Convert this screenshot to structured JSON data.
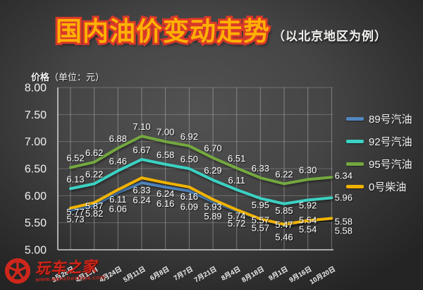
{
  "chart_data": {
    "type": "line",
    "title": "国内油价变动走势",
    "subtitle": "（以北京地区为例）",
    "ylabel_main": "价格",
    "ylabel_unit": "（单位：元）",
    "ylim": [
      5.0,
      8.0
    ],
    "y_ticks": [
      "8.00",
      "7.50",
      "7.00",
      "6.50",
      "6.00",
      "5.50",
      "5.00"
    ],
    "categories": [
      "3月26日",
      "4月10日",
      "4月24日",
      "5月11日",
      "6月8日",
      "7月7日",
      "7月21日",
      "8月4日",
      "8月18日",
      "9月1日",
      "9月16日",
      "10月20日"
    ],
    "series": [
      {
        "name": "89号汽油",
        "color": "#5188c2",
        "values": [
          5.73,
          5.82,
          6.06,
          6.24,
          6.16,
          6.09,
          5.89,
          5.72,
          5.57,
          5.46,
          5.54,
          5.58
        ]
      },
      {
        "name": "92号汽油",
        "color": "#3bd2c3",
        "values": [
          6.13,
          6.22,
          6.46,
          6.67,
          6.58,
          6.5,
          6.29,
          6.11,
          5.95,
          5.85,
          5.92,
          5.96
        ]
      },
      {
        "name": "95号汽油",
        "color": "#74a83f",
        "values": [
          6.52,
          6.62,
          6.88,
          7.1,
          7.0,
          6.92,
          6.7,
          6.51,
          6.33,
          6.22,
          6.3,
          6.34
        ]
      },
      {
        "name": "0号柴油",
        "color": "#f0b200",
        "values": [
          5.77,
          5.87,
          6.11,
          6.33,
          6.24,
          6.16,
          5.93,
          5.74,
          5.57,
          5.47,
          5.54,
          5.58
        ]
      }
    ],
    "legend_position": "right",
    "grid": true,
    "colors": {
      "title_fill": "#ffb103",
      "title_stroke": "#d9392a",
      "background_center": "#525252",
      "background_edge": "#242424",
      "text": "#f2f2f2"
    }
  },
  "watermark": {
    "name": "玩车之家",
    "url": "www.wancheshijia.com"
  }
}
